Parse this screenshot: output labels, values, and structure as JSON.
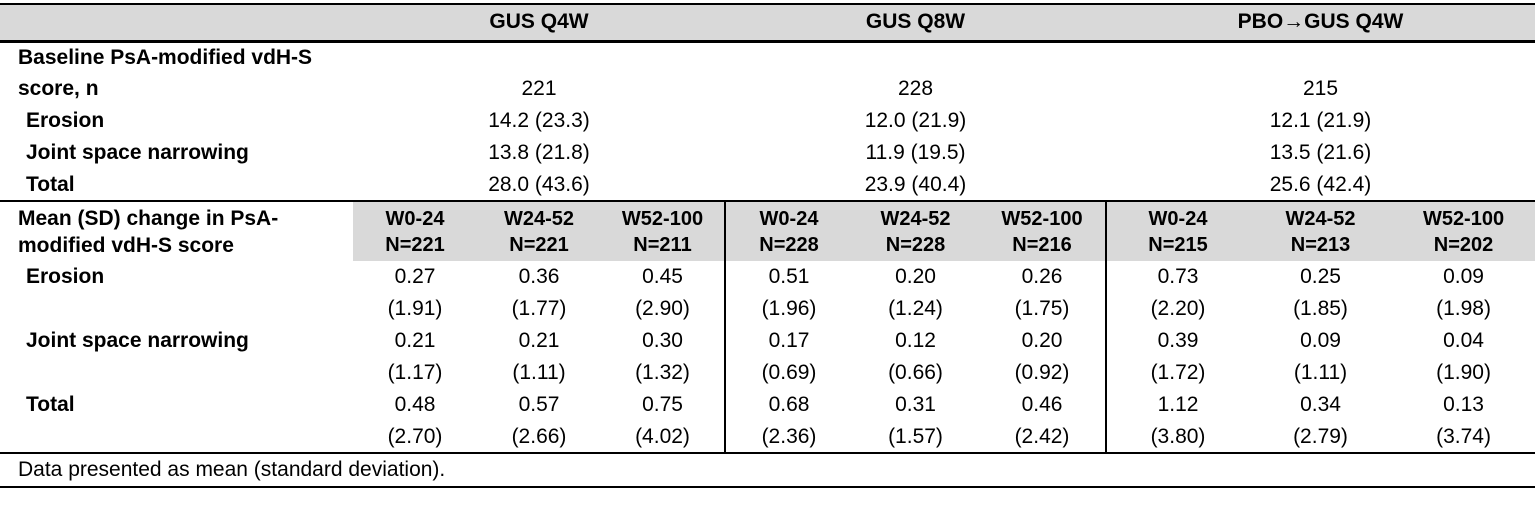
{
  "table": {
    "colors": {
      "header_shade": "#d9d9d9",
      "border": "#000000",
      "text": "#000000"
    },
    "groups": [
      {
        "label": "GUS Q4W"
      },
      {
        "label": "GUS Q8W"
      },
      {
        "label": "PBO→GUS Q4W"
      }
    ],
    "baseline": {
      "label_line1": "Baseline PsA-modified vdH-S",
      "label_line2": "score, n",
      "n_values": [
        "221",
        "228",
        "215"
      ],
      "rows": [
        {
          "label": "Erosion",
          "values": [
            "14.2 (23.3)",
            "12.0 (21.9)",
            "12.1 (21.9)"
          ]
        },
        {
          "label": "Joint space narrowing",
          "values": [
            "13.8 (21.8)",
            "11.9 (19.5)",
            "13.5 (21.6)"
          ]
        },
        {
          "label": "Total",
          "values": [
            "28.0 (43.6)",
            "23.9 (40.4)",
            "25.6 (42.4)"
          ]
        }
      ]
    },
    "change": {
      "label_line1": "Mean (SD) change in PsA-",
      "label_line2": "modified vdH-S score",
      "columns": [
        {
          "period": "W0-24",
          "n": "N=221"
        },
        {
          "period": "W24-52",
          "n": "N=221"
        },
        {
          "period": "W52-100",
          "n": "N=211"
        },
        {
          "period": "W0-24",
          "n": "N=228"
        },
        {
          "period": "W24-52",
          "n": "N=228"
        },
        {
          "period": "W52-100",
          "n": "N=216"
        },
        {
          "period": "W0-24",
          "n": "N=215"
        },
        {
          "period": "W24-52",
          "n": "N=213"
        },
        {
          "period": "W52-100",
          "n": "N=202"
        }
      ],
      "rows": [
        {
          "label": "Erosion",
          "means": [
            "0.27",
            "0.36",
            "0.45",
            "0.51",
            "0.20",
            "0.26",
            "0.73",
            "0.25",
            "0.09"
          ],
          "sds": [
            "(1.91)",
            "(1.77)",
            "(2.90)",
            "(1.96)",
            "(1.24)",
            "(1.75)",
            "(2.20)",
            "(1.85)",
            "(1.98)"
          ]
        },
        {
          "label": "Joint space narrowing",
          "means": [
            "0.21",
            "0.21",
            "0.30",
            "0.17",
            "0.12",
            "0.20",
            "0.39",
            "0.09",
            "0.04"
          ],
          "sds": [
            "(1.17)",
            "(1.11)",
            "(1.32)",
            "(0.69)",
            "(0.66)",
            "(0.92)",
            "(1.72)",
            "(1.11)",
            "(1.90)"
          ]
        },
        {
          "label": "Total",
          "means": [
            "0.48",
            "0.57",
            "0.75",
            "0.68",
            "0.31",
            "0.46",
            "1.12",
            "0.34",
            "0.13"
          ],
          "sds": [
            "(2.70)",
            "(2.66)",
            "(4.02)",
            "(2.36)",
            "(1.57)",
            "(2.42)",
            "(3.80)",
            "(2.79)",
            "(3.74)"
          ]
        }
      ]
    },
    "footnote": "Data presented as mean (standard deviation)."
  }
}
